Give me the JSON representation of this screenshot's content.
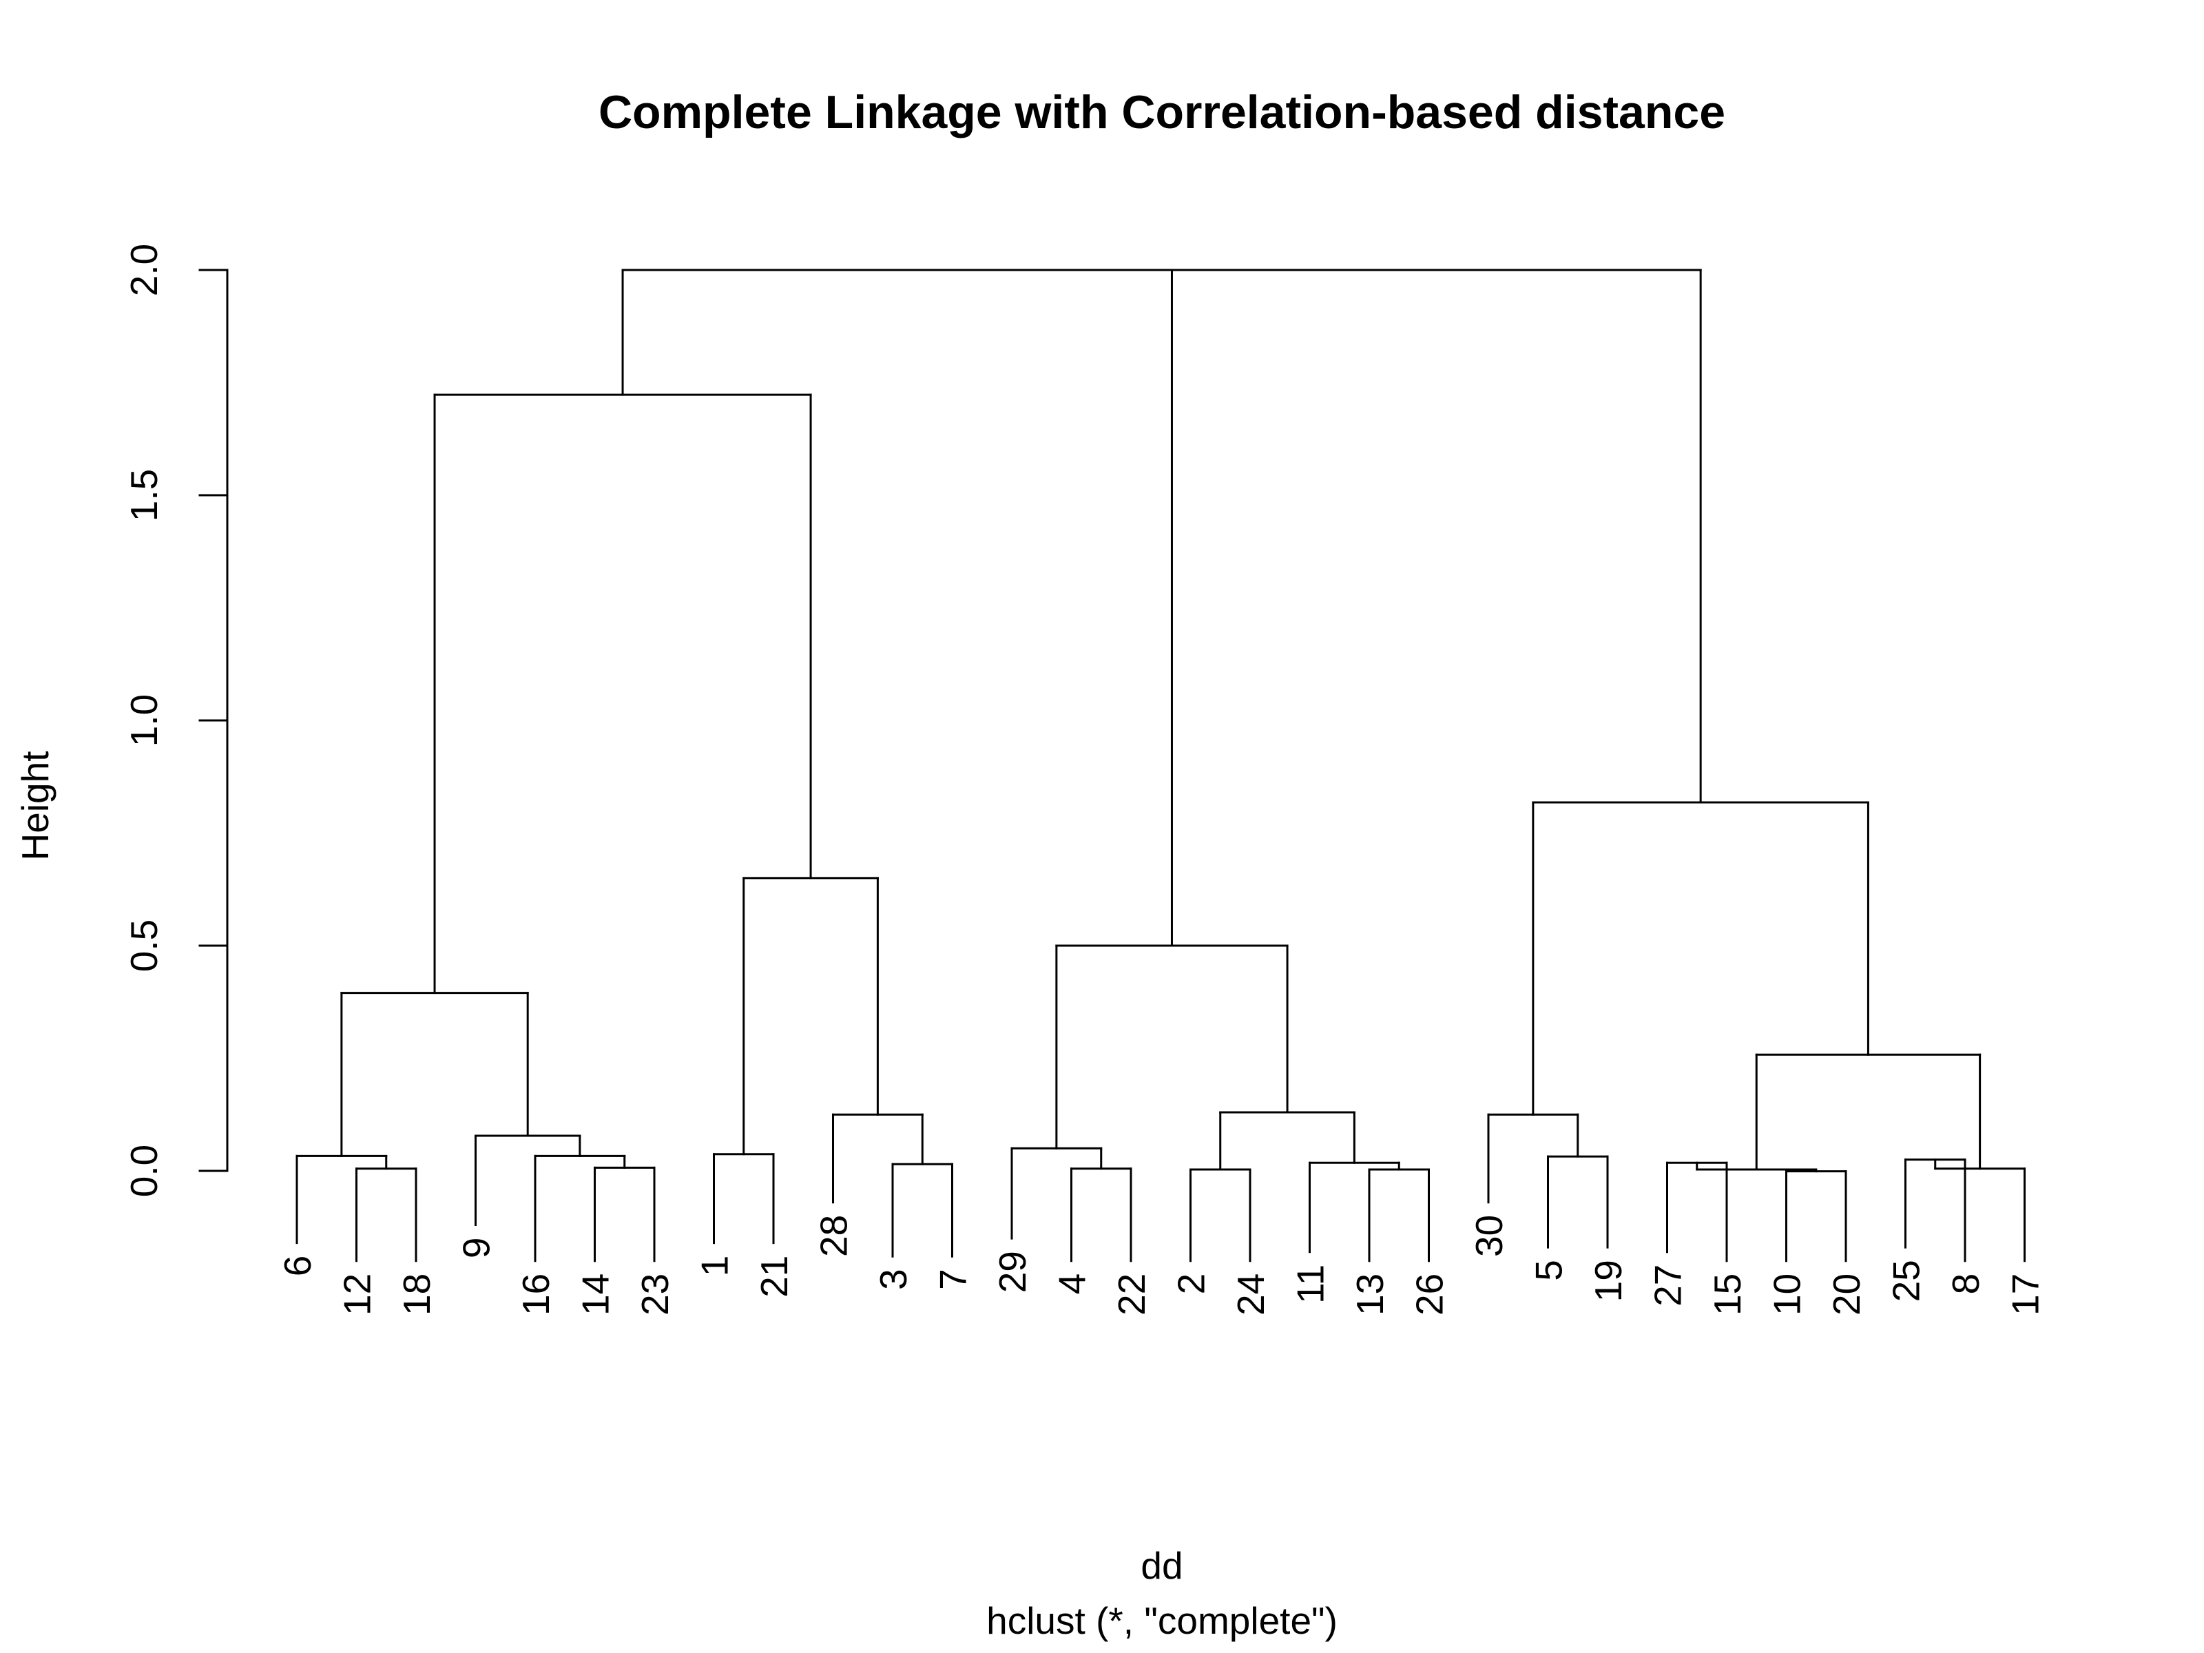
{
  "chart_data": {
    "type": "dendrogram",
    "title": "Complete Linkage with Correlation-based distance",
    "xlabel": "dd",
    "sublabel": "hclust (*, \"complete\")",
    "ylabel": "Height",
    "ylim": [
      0,
      2.0
    ],
    "yticks": [
      "0.0",
      "0.5",
      "1.0",
      "1.5",
      "2.0"
    ],
    "leaf_order": [
      "6",
      "12",
      "18",
      "9",
      "16",
      "14",
      "23",
      "1",
      "21",
      "28",
      "3",
      "7",
      "29",
      "4",
      "22",
      "2",
      "24",
      "11",
      "13",
      "26",
      "30",
      "5",
      "19",
      "27",
      "15",
      "10",
      "20",
      "25",
      "8",
      "17"
    ],
    "merges": [
      {
        "left": "27",
        "right": "15",
        "height": 0.018
      },
      {
        "left": "10",
        "right": "20",
        "height": -0.001
      },
      {
        "left": "25",
        "right": "8",
        "height": 0.025
      },
      {
        "left": "12",
        "right": "18",
        "height": 0.005
      },
      {
        "left": "14",
        "right": "23",
        "height": 0.007
      },
      {
        "left": "1",
        "right": "21",
        "height": 0.037
      },
      {
        "left": "3",
        "right": "7",
        "height": 0.015
      },
      {
        "left": "4",
        "right": "22",
        "height": 0.005
      },
      {
        "left": "2",
        "right": "24",
        "height": 0.003
      },
      {
        "left": "13",
        "right": "26",
        "height": 0.003
      },
      {
        "left": "5",
        "right": "19",
        "height": 0.032
      },
      {
        "left": "15",
        "right": "10",
        "height": 0.003
      },
      {
        "left": "8",
        "right": "17",
        "height": 0.005
      },
      {
        "left": "6",
        "right": "12",
        "height": 0.033
      },
      {
        "left": "16",
        "right": "14",
        "height": 0.033
      },
      {
        "left": "9",
        "right": "16",
        "height": 0.078
      },
      {
        "left": "28",
        "right": "3",
        "height": 0.125
      },
      {
        "left": "29",
        "right": "4",
        "height": 0.05
      },
      {
        "left": "11",
        "right": "13",
        "height": 0.018
      },
      {
        "left": "2",
        "right": "11",
        "height": 0.13
      },
      {
        "left": "30",
        "right": "5",
        "height": 0.125
      },
      {
        "left": "27",
        "right": "25",
        "height": 0.258
      },
      {
        "left": "6",
        "right": "9",
        "height": 0.395
      },
      {
        "left": "1",
        "right": "28",
        "height": 0.65
      },
      {
        "left": "29",
        "right": "2",
        "height": 0.5
      },
      {
        "left": "30",
        "right": "27",
        "height": 0.818
      },
      {
        "left": "6",
        "right": "1",
        "height": 1.723
      },
      {
        "left": "29",
        "right": "30",
        "height": 2.0
      },
      {
        "left": "6",
        "right": "29",
        "height": 2.0
      }
    ],
    "leaf_bottoms": {
      "6": -0.16,
      "12": -0.2,
      "18": -0.2,
      "9": -0.12,
      "16": -0.2,
      "14": -0.2,
      "23": -0.2,
      "1": -0.16,
      "21": -0.16,
      "28": -0.07,
      "3": -0.19,
      "7": -0.19,
      "29": -0.15,
      "4": -0.2,
      "22": -0.2,
      "2": -0.2,
      "24": -0.2,
      "11": -0.18,
      "13": -0.2,
      "26": -0.2,
      "30": -0.07,
      "5": -0.17,
      "19": -0.17,
      "27": -0.18,
      "15": -0.2,
      "10": -0.2,
      "20": -0.2,
      "25": -0.17,
      "8": -0.2,
      "17": -0.2
    }
  }
}
